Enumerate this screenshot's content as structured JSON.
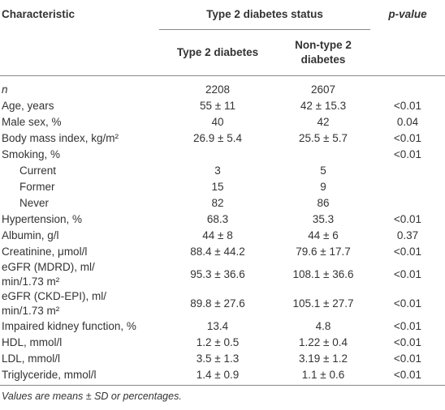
{
  "table": {
    "headers": {
      "characteristic": "Characteristic",
      "group": "Type 2 diabetes status",
      "p_value": "p-value",
      "columns": [
        "Type 2 diabetes",
        "Non-type 2\ndiabetes"
      ]
    },
    "rows": [
      {
        "label": "n",
        "italic": true,
        "values": [
          "2208",
          "2607"
        ]
      },
      {
        "label": "Age, years",
        "values": [
          "55 ± 11",
          "42 ± 15.3"
        ],
        "p": "<0.01"
      },
      {
        "label": "Male sex, %",
        "values": [
          "40",
          "42"
        ],
        "p": "0.04"
      },
      {
        "label": "Body mass index, kg/m²",
        "values": [
          "26.9 ± 5.4",
          "25.5 ± 5.7"
        ],
        "p": "<0.01"
      },
      {
        "label": "Smoking, %",
        "p": "<0.01"
      },
      {
        "label": "Current",
        "indent": true,
        "values": [
          "3",
          "5"
        ]
      },
      {
        "label": "Former",
        "indent": true,
        "values": [
          "15",
          "9"
        ]
      },
      {
        "label": "Never",
        "indent": true,
        "values": [
          "82",
          "86"
        ]
      },
      {
        "label": "Hypertension, %",
        "values": [
          "68.3",
          "35.3"
        ],
        "p": "<0.01"
      },
      {
        "label": "Albumin, g/l",
        "values": [
          "44 ± 8",
          "44 ± 6"
        ],
        "p": "0.37"
      },
      {
        "label": "Creatinine, μmol/l",
        "values": [
          "88.4 ± 44.2",
          "79.6 ± 17.7"
        ],
        "p": "<0.01"
      },
      {
        "label": "eGFR (MDRD), ml/\nmin/1.73 m²",
        "values": [
          "95.3 ± 36.6",
          "108.1 ± 36.6"
        ],
        "p": "<0.01"
      },
      {
        "label": "eGFR (CKD-EPI), ml/\nmin/1.73 m²",
        "values": [
          "89.8 ± 27.6",
          "105.1 ± 27.7"
        ],
        "p": "<0.01"
      },
      {
        "label": "Impaired kidney function, %",
        "values": [
          "13.4",
          "4.8"
        ],
        "p": "<0.01"
      },
      {
        "label": "HDL, mmol/l",
        "values": [
          "1.2 ± 0.5",
          "1.22 ± 0.4"
        ],
        "p": "<0.01"
      },
      {
        "label": "LDL, mmol/l",
        "values": [
          "3.5 ± 1.3",
          "3.19 ± 1.2"
        ],
        "p": "<0.01"
      },
      {
        "label": "Triglyceride, mmol/l",
        "values": [
          "1.4 ± 0.9",
          "1.1 ± 0.6"
        ],
        "p": "<0.01"
      }
    ],
    "footnote": "Values are means ± SD or percentages."
  }
}
